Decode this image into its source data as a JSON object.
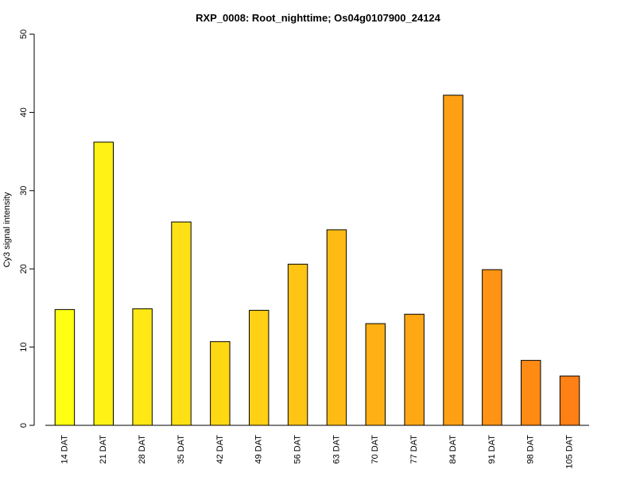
{
  "chart_data": {
    "type": "bar",
    "title": "RXP_0008: Root_nighttime; Os04g0107900_24124",
    "xlabel": "",
    "ylabel": "Cy3 signal intensity",
    "ylim": [
      0,
      50
    ],
    "yticks": [
      0,
      10,
      20,
      30,
      40,
      50
    ],
    "categories": [
      "14 DAT",
      "21 DAT",
      "28 DAT",
      "35 DAT",
      "42 DAT",
      "49 DAT",
      "56 DAT",
      "63 DAT",
      "70 DAT",
      "77 DAT",
      "84 DAT",
      "91 DAT",
      "98 DAT",
      "105 DAT"
    ],
    "values": [
      14.8,
      36.2,
      14.9,
      26.0,
      10.7,
      14.7,
      20.6,
      25.0,
      13.0,
      14.2,
      42.2,
      19.9,
      8.3,
      6.3
    ],
    "colors": [
      "#FFFF14",
      "#FFF214",
      "#FFE814",
      "#FFE014",
      "#FFD814",
      "#FFD014",
      "#FFC414",
      "#FFBB14",
      "#FFB014",
      "#FFA814",
      "#FFA014",
      "#FF9414",
      "#FF8A14",
      "#FF8014"
    ],
    "grid": false,
    "legend": "none"
  }
}
